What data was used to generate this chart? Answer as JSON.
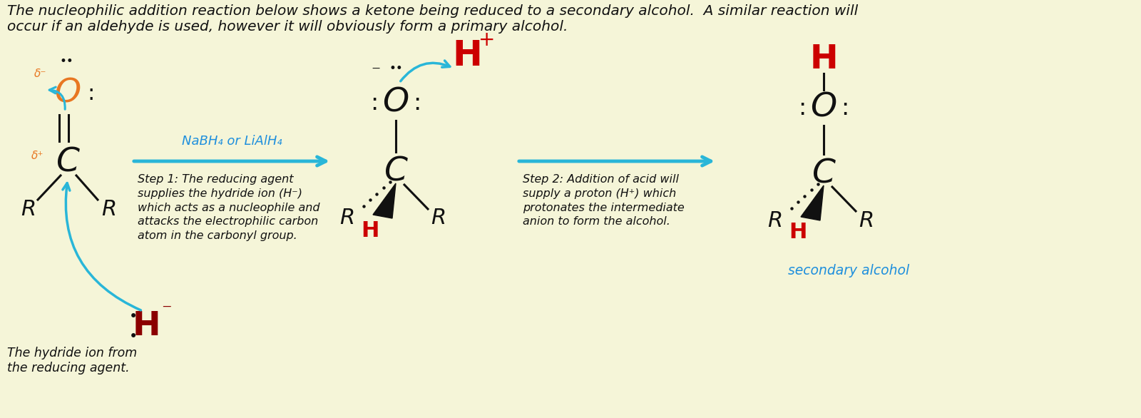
{
  "bg_color": "#f5f5d8",
  "title_text": "The nucleophilic addition reaction below shows a ketone being reduced to a secondary alcohol.  A similar reaction will\noccur if an aldehyde is used, however it will obviously form a primary alcohol.",
  "title_color": "#1a1a1a",
  "title_fontsize": 14.5,
  "step1_reagent": "NaBH₄ or LiAlH₄",
  "step1_text": "Step 1: The reducing agent\nsupplies the hydride ion (H⁻)\nwhich acts as a nucleophile and\nattacks the electrophilic carbon\natom in the carbonyl group.",
  "step2_text": "Step 2: Addition of acid will\nsupply a proton (H⁺) which\nprotonates the intermediate\nanion to form the alcohol.",
  "hydride_label": "The hydride ion from\nthe reducing agent.",
  "secondary_alcohol_label": "secondary alcohol",
  "black": "#111111",
  "red": "#cc0000",
  "blue": "#1e8fdd",
  "orange": "#e87722",
  "dark_red": "#8b0000",
  "cyan_arrow": "#29b6d8"
}
